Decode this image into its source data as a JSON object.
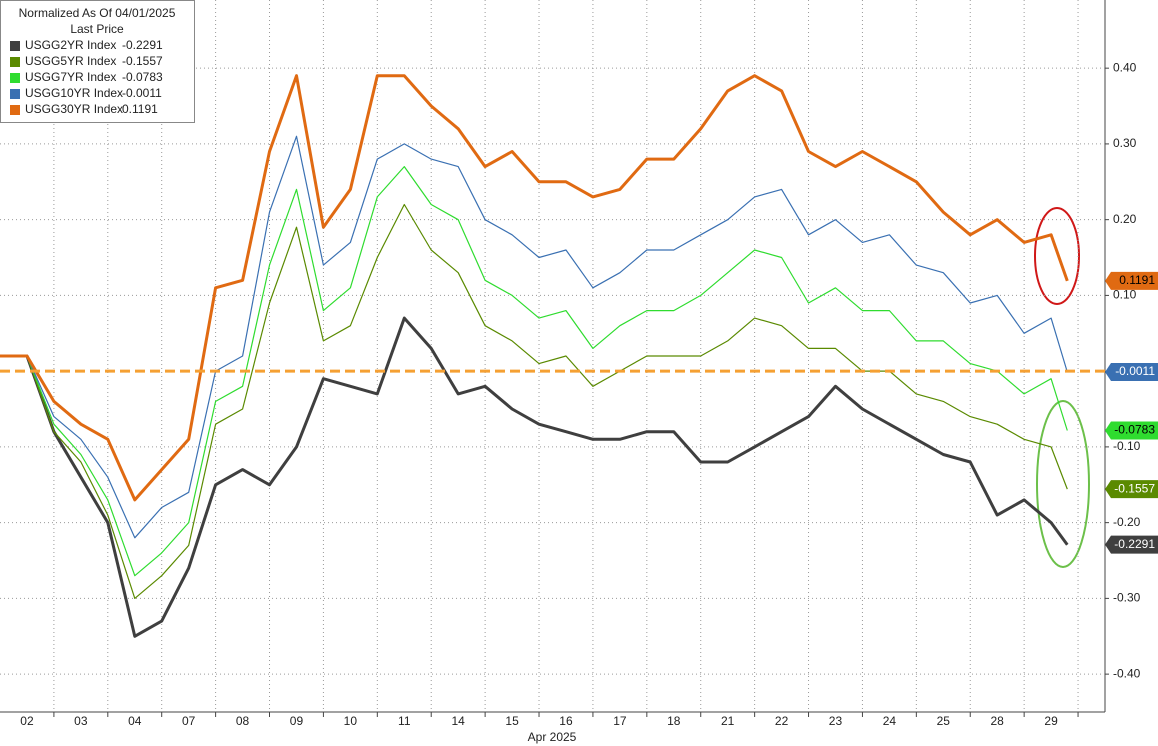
{
  "chart_data": {
    "type": "line",
    "title": "Normalized As Of 04/01/2025",
    "subtitle": "Last Price",
    "x_label": "Apr 2025",
    "x": [
      0,
      0.5,
      1,
      1.5,
      2,
      2.5,
      3,
      3.5,
      4,
      4.5,
      5,
      5.5,
      6,
      6.5,
      7,
      7.5,
      8,
      8.5,
      9,
      9.5,
      10,
      10.5,
      11,
      11.5,
      12,
      12.5,
      13,
      13.5,
      14,
      14.5,
      15,
      15.5,
      16,
      16.5,
      17,
      17.5,
      18,
      18.5,
      19,
      19.5,
      19.8
    ],
    "xlim": [
      0,
      20.5
    ],
    "xticks": [
      {
        "value": 0.5,
        "label": "02"
      },
      {
        "value": 1.5,
        "label": "03"
      },
      {
        "value": 2.5,
        "label": "04"
      },
      {
        "value": 3.5,
        "label": "07"
      },
      {
        "value": 4.5,
        "label": "08"
      },
      {
        "value": 5.5,
        "label": "09"
      },
      {
        "value": 6.5,
        "label": "10"
      },
      {
        "value": 7.5,
        "label": "11"
      },
      {
        "value": 8.5,
        "label": "14"
      },
      {
        "value": 9.5,
        "label": "15"
      },
      {
        "value": 10.5,
        "label": "16"
      },
      {
        "value": 11.5,
        "label": "17"
      },
      {
        "value": 12.5,
        "label": "18"
      },
      {
        "value": 13.5,
        "label": "21"
      },
      {
        "value": 14.5,
        "label": "22"
      },
      {
        "value": 15.5,
        "label": "23"
      },
      {
        "value": 16.5,
        "label": "24"
      },
      {
        "value": 17.5,
        "label": "25"
      },
      {
        "value": 18.5,
        "label": "28"
      },
      {
        "value": 19.5,
        "label": "29"
      }
    ],
    "ylim": [
      -0.45,
      0.49
    ],
    "yticks": [
      {
        "value": 0.4,
        "label": "0.40"
      },
      {
        "value": 0.3,
        "label": "0.30"
      },
      {
        "value": 0.2,
        "label": "0.20"
      },
      {
        "value": 0.1,
        "label": "0.10"
      },
      {
        "value": -0.1,
        "label": "-0.10"
      },
      {
        "value": -0.2,
        "label": "-0.20"
      },
      {
        "value": -0.3,
        "label": "-0.30"
      },
      {
        "value": -0.4,
        "label": "-0.40"
      }
    ],
    "grid": true,
    "reference_line": {
      "value": 0,
      "color": "#f5a033"
    },
    "legend": "upper left",
    "series": [
      {
        "name": "USGG2YR Index",
        "color": "#3f3f3f",
        "values": [
          0.02,
          0.02,
          -0.08,
          -0.14,
          -0.2,
          -0.35,
          -0.33,
          -0.26,
          -0.15,
          -0.13,
          -0.15,
          -0.1,
          -0.01,
          -0.02,
          -0.03,
          0.07,
          0.03,
          -0.03,
          -0.02,
          -0.05,
          -0.07,
          -0.08,
          -0.09,
          -0.09,
          -0.08,
          -0.08,
          -0.12,
          -0.12,
          -0.1,
          -0.08,
          -0.06,
          -0.02,
          -0.05,
          -0.07,
          -0.09,
          -0.11,
          -0.12,
          -0.19,
          -0.17,
          -0.2,
          -0.2291
        ]
      },
      {
        "name": "USGG5YR Index",
        "color": "#5a8a00",
        "values": [
          0.02,
          0.02,
          -0.08,
          -0.12,
          -0.19,
          -0.3,
          -0.27,
          -0.23,
          -0.07,
          -0.05,
          0.09,
          0.19,
          0.04,
          0.06,
          0.15,
          0.22,
          0.16,
          0.13,
          0.06,
          0.04,
          0.01,
          0.02,
          -0.02,
          0,
          0.02,
          0.02,
          0.02,
          0.04,
          0.07,
          0.06,
          0.03,
          0.03,
          0,
          0,
          -0.03,
          -0.04,
          -0.06,
          -0.07,
          -0.09,
          -0.1,
          -0.1557
        ]
      },
      {
        "name": "USGG7YR Index",
        "color": "#2fdc2f",
        "values": [
          0.02,
          0.02,
          -0.07,
          -0.11,
          -0.17,
          -0.27,
          -0.24,
          -0.2,
          -0.04,
          -0.02,
          0.14,
          0.24,
          0.08,
          0.11,
          0.23,
          0.27,
          0.22,
          0.2,
          0.12,
          0.1,
          0.07,
          0.08,
          0.03,
          0.06,
          0.08,
          0.08,
          0.1,
          0.13,
          0.16,
          0.15,
          0.09,
          0.11,
          0.08,
          0.08,
          0.04,
          0.04,
          0.01,
          0,
          -0.03,
          -0.01,
          -0.0783
        ]
      },
      {
        "name": "USGG10YR Index",
        "color": "#3a70b2",
        "values": [
          0.02,
          0.02,
          -0.06,
          -0.09,
          -0.14,
          -0.22,
          -0.18,
          -0.16,
          0,
          0.02,
          0.21,
          0.31,
          0.14,
          0.17,
          0.28,
          0.3,
          0.28,
          0.27,
          0.2,
          0.18,
          0.15,
          0.16,
          0.11,
          0.13,
          0.16,
          0.16,
          0.18,
          0.2,
          0.23,
          0.24,
          0.18,
          0.2,
          0.17,
          0.18,
          0.14,
          0.13,
          0.09,
          0.1,
          0.05,
          0.07,
          -0.0011
        ]
      },
      {
        "name": "USGG30YR Index",
        "color": "#e06a12",
        "values": [
          0.02,
          0.02,
          -0.04,
          -0.07,
          -0.09,
          -0.17,
          -0.13,
          -0.09,
          0.11,
          0.12,
          0.29,
          0.39,
          0.19,
          0.24,
          0.39,
          0.39,
          0.35,
          0.32,
          0.27,
          0.29,
          0.25,
          0.25,
          0.23,
          0.24,
          0.28,
          0.28,
          0.32,
          0.37,
          0.39,
          0.37,
          0.29,
          0.27,
          0.29,
          0.27,
          0.25,
          0.21,
          0.18,
          0.2,
          0.17,
          0.18,
          0.1191
        ]
      }
    ]
  }
}
